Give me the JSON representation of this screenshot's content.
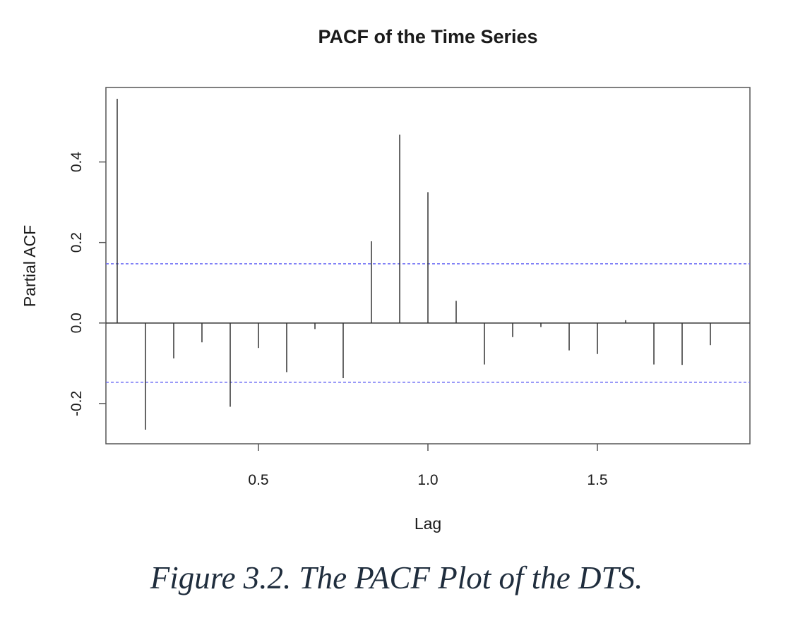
{
  "chart_data": {
    "type": "bar",
    "title": "PACF of the Time Series",
    "xlabel": "Lag",
    "ylabel": "Partial ACF",
    "xlim": [
      0.05,
      1.95
    ],
    "ylim": [
      -0.3,
      0.585
    ],
    "x_ticks": [
      {
        "value": 0.5,
        "label": "0.5"
      },
      {
        "value": 1.0,
        "label": "1.0"
      },
      {
        "value": 1.5,
        "label": "1.5"
      }
    ],
    "y_ticks": [
      {
        "value": -0.2,
        "label": "-0.2"
      },
      {
        "value": 0.0,
        "label": "0.0"
      },
      {
        "value": 0.2,
        "label": "0.2"
      },
      {
        "value": 0.4,
        "label": "0.4"
      }
    ],
    "confidence_bound": 0.147,
    "bound_color": "#6b6bf5",
    "bar_color": "#333333",
    "grid": false,
    "x": [
      0.0833,
      0.1667,
      0.25,
      0.3333,
      0.4167,
      0.5,
      0.5833,
      0.6667,
      0.75,
      0.8333,
      0.9167,
      1.0,
      1.0833,
      1.1667,
      1.25,
      1.3333,
      1.4167,
      1.5,
      1.5833,
      1.6667,
      1.75,
      1.8333
    ],
    "values": [
      0.557,
      -0.265,
      -0.088,
      -0.048,
      -0.208,
      -0.062,
      -0.122,
      -0.015,
      -0.137,
      0.203,
      0.468,
      0.325,
      0.055,
      -0.103,
      -0.035,
      -0.01,
      -0.068,
      -0.077,
      0.007,
      -0.103,
      -0.104,
      -0.055
    ]
  },
  "caption": "Figure 3.2. The PACF Plot of the DTS."
}
